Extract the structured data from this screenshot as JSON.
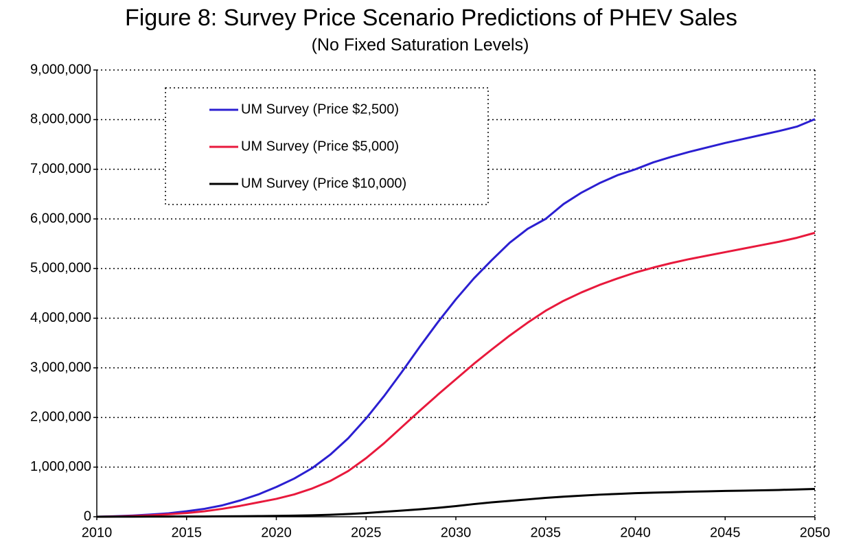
{
  "chart_data": {
    "type": "line",
    "title": "Figure 8: Survey Price Scenario Predictions of PHEV Sales",
    "subtitle": "(No Fixed Saturation Levels)",
    "x": [
      2010,
      2011,
      2012,
      2013,
      2014,
      2015,
      2016,
      2017,
      2018,
      2019,
      2020,
      2021,
      2022,
      2023,
      2024,
      2025,
      2026,
      2027,
      2028,
      2029,
      2030,
      2031,
      2032,
      2033,
      2034,
      2035,
      2036,
      2037,
      2038,
      2039,
      2040,
      2041,
      2042,
      2043,
      2044,
      2045,
      2046,
      2047,
      2048,
      2049,
      2050
    ],
    "series": [
      {
        "name": "UM Survey (Price $2,500)",
        "color": "#2b1fd1",
        "values": [
          0,
          10000,
          25000,
          45000,
          70000,
          110000,
          160000,
          230000,
          330000,
          450000,
          600000,
          770000,
          980000,
          1250000,
          1580000,
          1980000,
          2430000,
          2920000,
          3430000,
          3920000,
          4380000,
          4800000,
          5170000,
          5520000,
          5800000,
          6000000,
          6300000,
          6530000,
          6720000,
          6880000,
          7000000,
          7140000,
          7250000,
          7350000,
          7440000,
          7530000,
          7610000,
          7690000,
          7770000,
          7860000,
          8010000
        ]
      },
      {
        "name": "UM Survey (Price $5,000)",
        "color": "#e8193c",
        "values": [
          0,
          5000,
          15000,
          30000,
          50000,
          75000,
          110000,
          160000,
          220000,
          290000,
          360000,
          450000,
          570000,
          720000,
          920000,
          1180000,
          1480000,
          1810000,
          2140000,
          2460000,
          2770000,
          3080000,
          3370000,
          3650000,
          3910000,
          4150000,
          4350000,
          4520000,
          4670000,
          4800000,
          4920000,
          5020000,
          5110000,
          5190000,
          5260000,
          5330000,
          5400000,
          5470000,
          5540000,
          5620000,
          5720000
        ]
      },
      {
        "name": "UM Survey (Price $10,000)",
        "color": "#000000",
        "values": [
          0,
          1000,
          2000,
          3000,
          4000,
          5000,
          6000,
          8000,
          10000,
          13000,
          17000,
          22000,
          30000,
          40000,
          55000,
          75000,
          100000,
          125000,
          150000,
          180000,
          215000,
          255000,
          290000,
          320000,
          350000,
          380000,
          405000,
          425000,
          445000,
          460000,
          475000,
          485000,
          495000,
          505000,
          512000,
          520000,
          526000,
          533000,
          540000,
          550000,
          560000
        ]
      }
    ],
    "xlim": [
      2010,
      2050
    ],
    "xticks": [
      2010,
      2015,
      2020,
      2025,
      2030,
      2035,
      2040,
      2045,
      2050
    ],
    "ylim": [
      0,
      9000000
    ],
    "yticks": [
      0,
      {
        "value": 1000000,
        "label": "1,000,000"
      },
      {
        "value": 2000000,
        "label": "2,000,000"
      },
      {
        "value": 3000000,
        "label": "3,000,000"
      },
      {
        "value": 4000000,
        "label": "4,000,000"
      },
      {
        "value": 5000000,
        "label": "5,000,000"
      },
      {
        "value": 6000000,
        "label": "6,000,000"
      },
      {
        "value": 7000000,
        "label": "7,000,000"
      },
      {
        "value": 8000000,
        "label": "8,000,000"
      },
      {
        "value": 9000000,
        "label": "9,000,000"
      }
    ],
    "grid": true,
    "legend": "upper-left"
  }
}
